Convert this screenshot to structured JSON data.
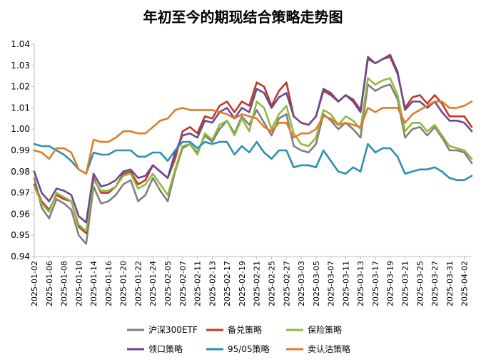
{
  "chart_data": {
    "type": "line",
    "title": "年初至今的期现结合策略走势图",
    "ylim": [
      0.94,
      1.04
    ],
    "yticks": [
      "0.94",
      "0.95",
      "0.96",
      "0.97",
      "0.98",
      "0.99",
      "1.00",
      "1.01",
      "1.02",
      "1.03",
      "1.04"
    ],
    "x": [
      "2025-01-02",
      "2025-01-03",
      "2025-01-06",
      "2025-01-07",
      "2025-01-08",
      "2025-01-09",
      "2025-01-10",
      "2025-01-13",
      "2025-01-14",
      "2025-01-15",
      "2025-01-16",
      "2025-01-17",
      "2025-01-20",
      "2025-01-21",
      "2025-01-22",
      "2025-01-23",
      "2025-01-24",
      "2025-01-27",
      "2025-02-05",
      "2025-02-06",
      "2025-02-07",
      "2025-02-10",
      "2025-02-11",
      "2025-02-12",
      "2025-02-13",
      "2025-02-14",
      "2025-02-17",
      "2025-02-18",
      "2025-02-19",
      "2025-02-20",
      "2025-02-21",
      "2025-02-24",
      "2025-02-25",
      "2025-02-26",
      "2025-02-27",
      "2025-02-28",
      "2025-03-03",
      "2025-03-04",
      "2025-03-05",
      "2025-03-06",
      "2025-03-07",
      "2025-03-10",
      "2025-03-11",
      "2025-03-12",
      "2025-03-13",
      "2025-03-14",
      "2025-03-17",
      "2025-03-18",
      "2025-03-19",
      "2025-03-20",
      "2025-03-21",
      "2025-03-24",
      "2025-03-25",
      "2025-03-26",
      "2025-03-27",
      "2025-03-28",
      "2025-03-31",
      "2025-04-01",
      "2025-04-02",
      "2025-04-03"
    ],
    "xticklabels": [
      "2025-01-02",
      "2025-01-06",
      "2025-01-08",
      "2025-01-10",
      "2025-01-14",
      "2025-01-16",
      "2025-01-20",
      "2025-01-22",
      "2025-01-24",
      "2025-02-05",
      "2025-02-07",
      "2025-02-11",
      "2025-02-13",
      "2025-02-17",
      "2025-02-19",
      "2025-02-21",
      "2025-02-25",
      "2025-02-27",
      "2025-03-03",
      "2025-03-05",
      "2025-03-07",
      "2025-03-11",
      "2025-03-13",
      "2025-03-17",
      "2025-03-19",
      "2025-03-21",
      "2025-03-25",
      "2025-03-27",
      "2025-03-31",
      "2025-04-02"
    ],
    "series": [
      {
        "name": "沪深300ETF",
        "color": "#7f7f7f",
        "values": [
          0.977,
          0.963,
          0.958,
          0.967,
          0.965,
          0.962,
          0.95,
          0.946,
          0.973,
          0.965,
          0.966,
          0.969,
          0.974,
          0.976,
          0.966,
          0.969,
          0.977,
          0.971,
          0.966,
          0.98,
          0.991,
          0.993,
          0.989,
          0.997,
          0.994,
          1.0,
          1.004,
          0.998,
          1.006,
          1.002,
          1.009,
          1.003,
          0.997,
          1.005,
          1.007,
          0.992,
          0.99,
          0.989,
          0.993,
          1.007,
          1.004,
          1.0,
          1.003,
          1.0,
          0.996,
          1.021,
          1.018,
          1.02,
          1.021,
          1.014,
          0.996,
          1.0,
          1.001,
          0.997,
          1.001,
          0.996,
          0.99,
          0.99,
          0.989,
          0.984
        ]
      },
      {
        "name": "备兑策略",
        "color": "#c0392b",
        "values": [
          0.974,
          0.966,
          0.962,
          0.969,
          0.967,
          0.966,
          0.954,
          0.951,
          0.977,
          0.97,
          0.97,
          0.973,
          0.979,
          0.98,
          0.974,
          0.976,
          0.983,
          0.98,
          0.977,
          0.986,
          0.999,
          1.001,
          0.998,
          1.006,
          1.005,
          1.011,
          1.013,
          1.008,
          1.013,
          1.011,
          1.022,
          1.02,
          1.011,
          1.018,
          1.022,
          1.006,
          1.003,
          1.002,
          1.006,
          1.018,
          1.016,
          1.013,
          1.016,
          1.014,
          1.009,
          1.033,
          1.031,
          1.033,
          1.034,
          1.026,
          1.01,
          1.015,
          1.016,
          1.012,
          1.016,
          1.012,
          1.006,
          1.006,
          1.006,
          1.001
        ]
      },
      {
        "name": "保险策略",
        "color": "#92b83f",
        "values": [
          0.973,
          0.965,
          0.961,
          0.97,
          0.968,
          0.966,
          0.955,
          0.952,
          0.976,
          0.971,
          0.971,
          0.973,
          0.978,
          0.979,
          0.972,
          0.974,
          0.979,
          0.974,
          0.969,
          0.981,
          0.992,
          0.993,
          0.988,
          0.998,
          0.995,
          1.002,
          1.004,
          0.997,
          1.005,
          0.999,
          1.013,
          1.01,
          1.0,
          1.007,
          1.011,
          0.998,
          0.993,
          0.992,
          0.996,
          1.009,
          1.007,
          1.002,
          1.006,
          1.004,
          1.0,
          1.024,
          1.021,
          1.023,
          1.024,
          1.016,
          0.999,
          1.003,
          1.003,
          0.999,
          1.002,
          0.997,
          0.992,
          0.991,
          0.99,
          0.986
        ]
      },
      {
        "name": "领口策略",
        "color": "#6a4a8c",
        "values": [
          0.98,
          0.97,
          0.966,
          0.972,
          0.971,
          0.969,
          0.959,
          0.956,
          0.979,
          0.973,
          0.974,
          0.976,
          0.98,
          0.981,
          0.977,
          0.978,
          0.983,
          0.98,
          0.977,
          0.989,
          0.997,
          0.998,
          0.996,
          1.004,
          1.003,
          1.008,
          1.01,
          1.005,
          1.01,
          1.008,
          1.019,
          1.017,
          1.01,
          1.015,
          1.017,
          1.006,
          1.003,
          1.002,
          1.006,
          1.019,
          1.017,
          1.013,
          1.016,
          1.013,
          1.008,
          1.034,
          1.031,
          1.033,
          1.035,
          1.027,
          1.009,
          1.013,
          1.013,
          1.01,
          1.013,
          1.008,
          1.004,
          1.004,
          1.003,
          0.999
        ]
      },
      {
        "name": "95/05策略",
        "color": "#2e8fb0",
        "values": [
          0.993,
          0.992,
          0.992,
          0.99,
          0.988,
          0.985,
          0.981,
          0.979,
          0.989,
          0.988,
          0.988,
          0.99,
          0.99,
          0.99,
          0.987,
          0.987,
          0.989,
          0.989,
          0.985,
          0.99,
          0.994,
          0.994,
          0.991,
          0.994,
          0.993,
          0.994,
          0.994,
          0.988,
          0.992,
          0.989,
          0.994,
          0.989,
          0.986,
          0.99,
          0.99,
          0.982,
          0.983,
          0.983,
          0.982,
          0.99,
          0.985,
          0.98,
          0.979,
          0.982,
          0.98,
          0.993,
          0.989,
          0.991,
          0.991,
          0.987,
          0.979,
          0.98,
          0.981,
          0.981,
          0.982,
          0.98,
          0.977,
          0.976,
          0.976,
          0.978
        ]
      },
      {
        "name": "卖认沽策略",
        "color": "#e07b2c",
        "values": [
          0.99,
          0.989,
          0.986,
          0.991,
          0.991,
          0.989,
          0.981,
          0.979,
          0.995,
          0.994,
          0.994,
          0.996,
          0.999,
          0.999,
          0.998,
          0.998,
          1.001,
          1.004,
          1.005,
          1.009,
          1.01,
          1.009,
          1.009,
          1.009,
          1.009,
          1.008,
          1.007,
          1.005,
          1.007,
          1.006,
          1.005,
          1.001,
          0.999,
          1.003,
          1.003,
          0.996,
          0.998,
          0.998,
          1.0,
          1.006,
          1.005,
          1.002,
          1.003,
          1.002,
          1.001,
          1.01,
          1.008,
          1.01,
          1.01,
          1.01,
          1.003,
          1.007,
          1.009,
          1.011,
          1.013,
          1.013,
          1.01,
          1.01,
          1.011,
          1.013
        ]
      }
    ],
    "legend_position": "bottom",
    "grid": false
  }
}
